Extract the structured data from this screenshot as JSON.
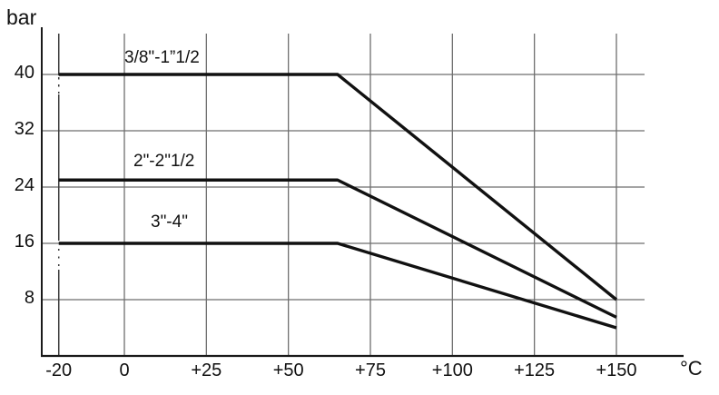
{
  "chart_data": {
    "type": "line",
    "title": "",
    "xlabel": "°C",
    "ylabel": "bar",
    "xlim": [
      -25,
      170
    ],
    "ylim": [
      0,
      45
    ],
    "grid": true,
    "legend_position": "inline-above-lines",
    "x_ticks": [
      -20,
      0,
      25,
      50,
      75,
      100,
      125,
      150
    ],
    "x_tick_labels": [
      "-20",
      "0",
      "+25",
      "+50",
      "+75",
      "+100",
      "+125",
      "+150"
    ],
    "y_ticks": [
      8,
      16,
      24,
      32,
      40
    ],
    "y_tick_labels": [
      "8",
      "16",
      "24",
      "32",
      "40"
    ],
    "min_temp_marker": {
      "x": -20,
      "style": "solid-with-dotted-gaps"
    },
    "series": [
      {
        "label": "3/8\"-1”1/2",
        "points": [
          [
            -20,
            40
          ],
          [
            65,
            40
          ],
          [
            150,
            8
          ]
        ]
      },
      {
        "label": "2\"-2\"1/2",
        "points": [
          [
            -20,
            25
          ],
          [
            65,
            25
          ],
          [
            150,
            5.5
          ]
        ]
      },
      {
        "label": "3\"-4\"",
        "points": [
          [
            -20,
            16
          ],
          [
            65,
            16
          ],
          [
            150,
            4
          ]
        ]
      }
    ],
    "colors": {
      "series_line": "#111111",
      "gridline": "#6e6e6e",
      "axis": "#1a1a1a"
    }
  }
}
